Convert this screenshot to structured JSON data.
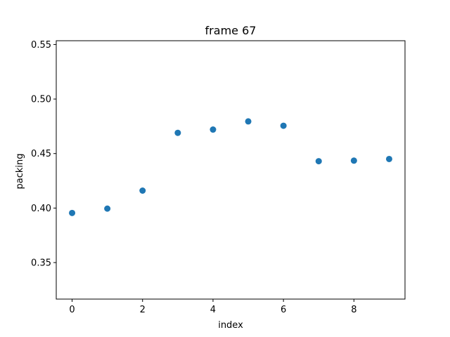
{
  "chart_data": {
    "type": "scatter",
    "title": "frame 67",
    "xlabel": "index",
    "ylabel": "packing",
    "xlim": [
      -0.45,
      9.45
    ],
    "ylim": [
      0.3165,
      0.5535
    ],
    "x_ticks": [
      0,
      2,
      4,
      6,
      8
    ],
    "y_ticks": [
      0.35,
      0.4,
      0.45,
      0.5,
      0.55
    ],
    "x_tick_labels": [
      "0",
      "2",
      "4",
      "6",
      "8"
    ],
    "y_tick_labels": [
      "0.35",
      "0.40",
      "0.45",
      "0.50",
      "0.55"
    ],
    "grid": false,
    "marker_color": "#1f77b4",
    "series": [
      {
        "x": [
          0,
          1,
          2,
          3,
          4,
          5,
          6,
          7,
          8,
          9
        ],
        "y": [
          0.3955,
          0.3995,
          0.416,
          0.469,
          0.472,
          0.4795,
          0.4755,
          0.443,
          0.4435,
          0.445
        ]
      }
    ]
  }
}
